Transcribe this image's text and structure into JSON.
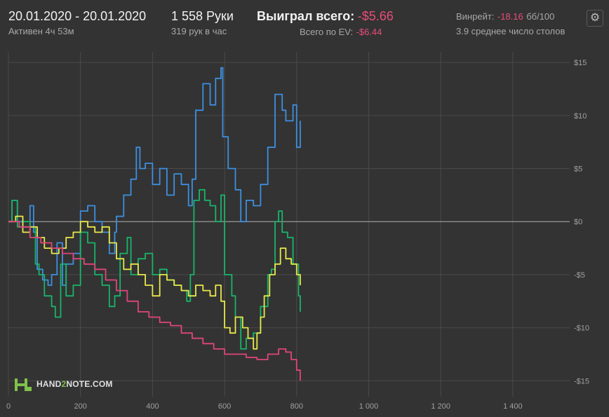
{
  "header": {
    "date_range": "20.01.2020 - 20.01.2020",
    "active_time": "Активен 4ч 53м",
    "hands": "1 558 Руки",
    "hands_per_hour": "319 рук в час",
    "won_label": "Выиграл всего:",
    "won_value": "-$5.66",
    "ev_label": "Всего по EV:",
    "ev_value": "-$6.44",
    "winrate_label": "Винрейт:",
    "winrate_value": "-18.16",
    "winrate_unit": "бб/100",
    "tables": "3.9 среднее число столов"
  },
  "settings_icon": "gear-icon",
  "logo": {
    "prefix": "HAND",
    "accent": "2",
    "suffix": "NOTE.COM"
  },
  "colors": {
    "background": "#333333",
    "grid": "#4a4a4a",
    "zero_line": "#9a9a9a",
    "blue": "#3d8fe0",
    "green": "#19b46a",
    "yellow": "#e8e84a",
    "red": "#e0457a",
    "negative": "#e84d7a"
  },
  "chart_data": {
    "type": "line",
    "x_ticks": [
      0,
      200,
      400,
      600,
      800,
      1000,
      1200,
      1400
    ],
    "x_tick_labels": [
      "0",
      "200",
      "400",
      "600",
      "800",
      "1 000",
      "1 200",
      "1 400"
    ],
    "y_ticks": [
      15,
      10,
      5,
      0,
      -5,
      -10,
      -15
    ],
    "y_tick_labels": [
      "$15",
      "$10",
      "$5",
      "$0",
      "-$5",
      "-$10",
      "-$15"
    ],
    "xlim": [
      0,
      1558
    ],
    "ylim": [
      -16.5,
      16
    ],
    "grid": true,
    "series": [
      {
        "color": "#3d8fe0",
        "points": [
          [
            0,
            0
          ],
          [
            10,
            2
          ],
          [
            25,
            0
          ],
          [
            40,
            -0.5
          ],
          [
            60,
            1.5
          ],
          [
            70,
            -1
          ],
          [
            80,
            -4.5
          ],
          [
            95,
            -5.5
          ],
          [
            110,
            -6
          ],
          [
            120,
            -5
          ],
          [
            135,
            -2
          ],
          [
            150,
            -6
          ],
          [
            160,
            -4
          ],
          [
            180,
            -3
          ],
          [
            200,
            1
          ],
          [
            220,
            1.5
          ],
          [
            240,
            0
          ],
          [
            260,
            -1
          ],
          [
            280,
            -3
          ],
          [
            295,
            -1
          ],
          [
            300,
            0.5
          ],
          [
            320,
            2.5
          ],
          [
            340,
            4
          ],
          [
            355,
            7
          ],
          [
            365,
            5
          ],
          [
            380,
            5.5
          ],
          [
            400,
            3.5
          ],
          [
            420,
            5
          ],
          [
            440,
            2.5
          ],
          [
            460,
            4.5
          ],
          [
            480,
            3.5
          ],
          [
            500,
            1.5
          ],
          [
            510,
            4
          ],
          [
            520,
            10.5
          ],
          [
            540,
            13
          ],
          [
            560,
            11
          ],
          [
            575,
            13.5
          ],
          [
            590,
            14.5
          ],
          [
            595,
            8
          ],
          [
            610,
            5
          ],
          [
            630,
            3
          ],
          [
            645,
            0
          ],
          [
            660,
            2
          ],
          [
            680,
            1.5
          ],
          [
            700,
            3.5
          ],
          [
            720,
            7
          ],
          [
            740,
            12
          ],
          [
            760,
            10.5
          ],
          [
            770,
            9.5
          ],
          [
            790,
            11
          ],
          [
            800,
            7
          ],
          [
            810,
            9.5
          ]
        ]
      },
      {
        "color": "#19b46a",
        "points": [
          [
            0,
            0
          ],
          [
            10,
            2
          ],
          [
            25,
            -0.5
          ],
          [
            40,
            0
          ],
          [
            60,
            -0.5
          ],
          [
            75,
            -4
          ],
          [
            85,
            -5
          ],
          [
            100,
            -7
          ],
          [
            120,
            -8
          ],
          [
            130,
            -9
          ],
          [
            145,
            -4
          ],
          [
            160,
            -7
          ],
          [
            180,
            -6
          ],
          [
            200,
            -1
          ],
          [
            220,
            -2
          ],
          [
            240,
            -5
          ],
          [
            260,
            -6
          ],
          [
            280,
            -8
          ],
          [
            295,
            -7
          ],
          [
            310,
            -3
          ],
          [
            330,
            -1.5
          ],
          [
            340,
            -5
          ],
          [
            360,
            -3.5
          ],
          [
            380,
            -3
          ],
          [
            400,
            -5
          ],
          [
            420,
            -4.5
          ],
          [
            440,
            -5.5
          ],
          [
            460,
            -6
          ],
          [
            480,
            -6.5
          ],
          [
            495,
            -7.5
          ],
          [
            505,
            -5
          ],
          [
            515,
            2
          ],
          [
            530,
            3
          ],
          [
            545,
            2
          ],
          [
            560,
            1.5
          ],
          [
            575,
            0
          ],
          [
            590,
            2.5
          ],
          [
            600,
            -5
          ],
          [
            620,
            -7
          ],
          [
            630,
            -9
          ],
          [
            645,
            -12
          ],
          [
            660,
            -11
          ],
          [
            680,
            -10.5
          ],
          [
            700,
            -8
          ],
          [
            720,
            -5
          ],
          [
            730,
            -4.5
          ],
          [
            740,
            0
          ],
          [
            750,
            1
          ],
          [
            760,
            -1
          ],
          [
            775,
            -1.5
          ],
          [
            790,
            -4
          ],
          [
            805,
            -7
          ],
          [
            810,
            -8.5
          ]
        ]
      },
      {
        "color": "#e8e84a",
        "points": [
          [
            0,
            0
          ],
          [
            20,
            0.5
          ],
          [
            40,
            -1
          ],
          [
            60,
            -0.5
          ],
          [
            80,
            -1.5
          ],
          [
            100,
            -2.5
          ],
          [
            120,
            -3
          ],
          [
            140,
            -2.5
          ],
          [
            160,
            -1.5
          ],
          [
            180,
            -1
          ],
          [
            200,
            0
          ],
          [
            220,
            -0.5
          ],
          [
            240,
            -1
          ],
          [
            260,
            -0.5
          ],
          [
            280,
            -2
          ],
          [
            300,
            -3.5
          ],
          [
            320,
            -4.5
          ],
          [
            340,
            -4
          ],
          [
            360,
            -5
          ],
          [
            380,
            -6
          ],
          [
            400,
            -7
          ],
          [
            420,
            -5
          ],
          [
            440,
            -5.5
          ],
          [
            460,
            -6
          ],
          [
            480,
            -6.5
          ],
          [
            500,
            -7
          ],
          [
            520,
            -6
          ],
          [
            540,
            -6.5
          ],
          [
            560,
            -7
          ],
          [
            575,
            -6
          ],
          [
            590,
            -7.5
          ],
          [
            600,
            -10
          ],
          [
            615,
            -10.5
          ],
          [
            630,
            -9
          ],
          [
            650,
            -10
          ],
          [
            665,
            -11
          ],
          [
            680,
            -12
          ],
          [
            690,
            -10.5
          ],
          [
            700,
            -9
          ],
          [
            710,
            -7
          ],
          [
            725,
            -5
          ],
          [
            740,
            -4
          ],
          [
            755,
            -2.5
          ],
          [
            770,
            -3.5
          ],
          [
            785,
            -4
          ],
          [
            800,
            -5
          ],
          [
            810,
            -6
          ]
        ]
      },
      {
        "color": "#e0457a",
        "points": [
          [
            0,
            0
          ],
          [
            30,
            -0.5
          ],
          [
            60,
            -1.5
          ],
          [
            90,
            -2
          ],
          [
            120,
            -2.5
          ],
          [
            150,
            -3
          ],
          [
            180,
            -3.5
          ],
          [
            210,
            -4
          ],
          [
            240,
            -4.5
          ],
          [
            270,
            -5.5
          ],
          [
            300,
            -6.5
          ],
          [
            330,
            -7.5
          ],
          [
            360,
            -8.5
          ],
          [
            390,
            -9
          ],
          [
            420,
            -9.5
          ],
          [
            450,
            -9.8
          ],
          [
            480,
            -10.5
          ],
          [
            510,
            -11
          ],
          [
            540,
            -11.5
          ],
          [
            570,
            -12
          ],
          [
            600,
            -12.5
          ],
          [
            630,
            -12.5
          ],
          [
            660,
            -12.8
          ],
          [
            690,
            -13
          ],
          [
            720,
            -12.5
          ],
          [
            750,
            -12
          ],
          [
            770,
            -12.3
          ],
          [
            785,
            -13
          ],
          [
            800,
            -14
          ],
          [
            810,
            -15
          ]
        ]
      }
    ]
  }
}
